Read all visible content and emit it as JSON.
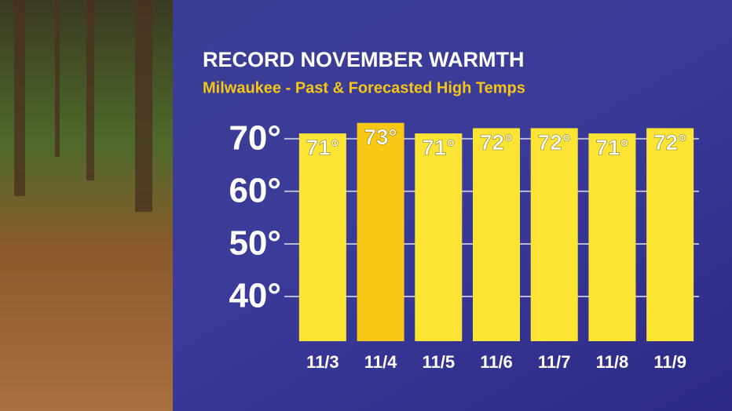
{
  "chart_data": {
    "type": "bar",
    "title": "RECORD NOVEMBER WARMTH",
    "subtitle": "Milwaukee - Past & Forecasted High Temps",
    "categories": [
      "11/3",
      "11/4",
      "11/5",
      "11/6",
      "11/7",
      "11/8",
      "11/9"
    ],
    "values": [
      71,
      73,
      71,
      72,
      72,
      71,
      72
    ],
    "value_labels": [
      "71°",
      "73°",
      "71°",
      "72°",
      "72°",
      "71°",
      "72°"
    ],
    "colors": [
      "#fbe434",
      "#f8c814",
      "#fbe434",
      "#fbe434",
      "#fbe434",
      "#fbe434",
      "#fbe434"
    ],
    "ylim": [
      31.5,
      74
    ],
    "yticks": [
      {
        "value": 40,
        "label": "40°"
      },
      {
        "value": 50,
        "label": "50°"
      },
      {
        "value": 60,
        "label": "60°"
      },
      {
        "value": 70,
        "label": "70°"
      }
    ],
    "grid": true
  }
}
